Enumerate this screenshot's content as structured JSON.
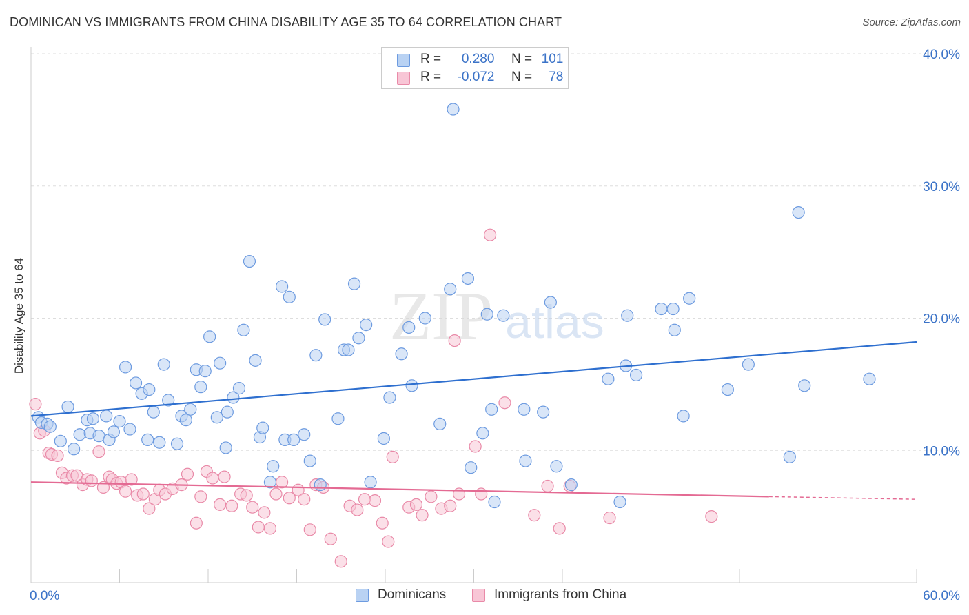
{
  "title": "DOMINICAN VS IMMIGRANTS FROM CHINA DISABILITY AGE 35 TO 64 CORRELATION CHART",
  "source": "Source: ZipAtlas.com",
  "watermark": {
    "zip": "ZIP",
    "atlas": "atlas"
  },
  "colors": {
    "blue": "#6d9be0",
    "blue_fill": "#b9d2f3",
    "blue_line": "#2e6fcf",
    "pink": "#e98aa8",
    "pink_fill": "#f8c6d6",
    "pink_line": "#e46a93",
    "tick_text": "#3b73c8"
  },
  "legend_top": {
    "rows": [
      {
        "r_label": "R =",
        "r_value": "0.280",
        "n_label": "N =",
        "n_value": "101"
      },
      {
        "r_label": "R =",
        "r_value": "-0.072",
        "n_label": "N =",
        "n_value": "78"
      }
    ]
  },
  "legend_bottom": {
    "dominicans": "Dominicans",
    "china": "Immigrants from China"
  },
  "chart_data": {
    "type": "scatter",
    "ylabel": "Disability Age 35 to 64",
    "xlim": [
      0,
      60
    ],
    "ylim": [
      0,
      40
    ],
    "x_tick_labels": [
      "0.0%",
      "60.0%"
    ],
    "y_ticks": [
      10,
      20,
      30,
      40
    ],
    "y_tick_labels": [
      "10.0%",
      "20.0%",
      "30.0%",
      "40.0%"
    ],
    "grid": true,
    "series": [
      {
        "name": "Dominicans",
        "trend": {
          "x": [
            0,
            60
          ],
          "y": [
            12.6,
            18.2
          ]
        },
        "points": [
          [
            0.5,
            12.5
          ],
          [
            0.7,
            12.1
          ],
          [
            1.1,
            12.0
          ],
          [
            1.3,
            11.8
          ],
          [
            2.0,
            10.7
          ],
          [
            2.5,
            13.3
          ],
          [
            2.9,
            10.1
          ],
          [
            3.3,
            11.2
          ],
          [
            3.8,
            12.3
          ],
          [
            4.0,
            11.3
          ],
          [
            4.6,
            11.1
          ],
          [
            5.1,
            12.6
          ],
          [
            5.3,
            10.8
          ],
          [
            5.6,
            11.4
          ],
          [
            6.0,
            12.2
          ],
          [
            6.4,
            16.3
          ],
          [
            6.7,
            11.6
          ],
          [
            7.1,
            15.1
          ],
          [
            7.5,
            14.3
          ],
          [
            7.9,
            10.8
          ],
          [
            8.0,
            14.6
          ],
          [
            8.3,
            12.9
          ],
          [
            8.7,
            10.6
          ],
          [
            9.0,
            16.5
          ],
          [
            9.3,
            13.8
          ],
          [
            9.9,
            10.5
          ],
          [
            10.2,
            12.6
          ],
          [
            10.5,
            12.3
          ],
          [
            10.8,
            13.1
          ],
          [
            11.2,
            16.1
          ],
          [
            11.5,
            14.8
          ],
          [
            11.8,
            16.0
          ],
          [
            12.1,
            18.6
          ],
          [
            12.6,
            12.5
          ],
          [
            12.8,
            16.6
          ],
          [
            13.2,
            10.2
          ],
          [
            13.7,
            14.0
          ],
          [
            14.1,
            14.7
          ],
          [
            14.4,
            19.1
          ],
          [
            14.8,
            24.3
          ],
          [
            15.2,
            16.8
          ],
          [
            15.5,
            11.0
          ],
          [
            15.7,
            11.7
          ],
          [
            16.2,
            7.6
          ],
          [
            16.4,
            8.8
          ],
          [
            17.0,
            22.4
          ],
          [
            17.2,
            10.8
          ],
          [
            17.5,
            21.6
          ],
          [
            17.8,
            10.8
          ],
          [
            18.5,
            11.2
          ],
          [
            18.9,
            9.2
          ],
          [
            19.3,
            17.2
          ],
          [
            19.6,
            7.4
          ],
          [
            19.9,
            19.9
          ],
          [
            20.8,
            12.4
          ],
          [
            21.2,
            17.6
          ],
          [
            21.5,
            17.6
          ],
          [
            21.9,
            22.6
          ],
          [
            22.2,
            18.5
          ],
          [
            22.7,
            19.5
          ],
          [
            23.0,
            7.6
          ],
          [
            23.9,
            10.9
          ],
          [
            24.3,
            14.0
          ],
          [
            25.1,
            17.3
          ],
          [
            25.8,
            14.9
          ],
          [
            26.7,
            20.0
          ],
          [
            27.7,
            12.0
          ],
          [
            28.4,
            22.2
          ],
          [
            28.6,
            35.8
          ],
          [
            29.6,
            23.0
          ],
          [
            29.8,
            8.7
          ],
          [
            30.6,
            11.3
          ],
          [
            30.9,
            20.3
          ],
          [
            31.2,
            13.1
          ],
          [
            31.4,
            6.1
          ],
          [
            32.0,
            20.2
          ],
          [
            33.5,
            9.2
          ],
          [
            33.4,
            13.1
          ],
          [
            34.7,
            12.9
          ],
          [
            35.2,
            21.2
          ],
          [
            35.6,
            8.8
          ],
          [
            36.6,
            7.4
          ],
          [
            39.1,
            15.4
          ],
          [
            39.9,
            6.1
          ],
          [
            40.3,
            16.4
          ],
          [
            40.4,
            20.2
          ],
          [
            41.0,
            15.7
          ],
          [
            42.7,
            20.7
          ],
          [
            43.5,
            20.7
          ],
          [
            43.6,
            19.1
          ],
          [
            44.2,
            12.6
          ],
          [
            44.6,
            21.5
          ],
          [
            47.2,
            14.6
          ],
          [
            48.6,
            16.5
          ],
          [
            51.4,
            9.5
          ],
          [
            52.0,
            28.0
          ],
          [
            52.4,
            14.9
          ],
          [
            56.8,
            15.4
          ],
          [
            4.2,
            12.4
          ],
          [
            13.3,
            12.9
          ],
          [
            25.6,
            19.3
          ]
        ]
      },
      {
        "name": "Immigrants from China",
        "trend": {
          "x": [
            0,
            50
          ],
          "y": [
            7.6,
            6.5
          ]
        },
        "trend_dashed": {
          "x": [
            50,
            60
          ],
          "y": [
            6.5,
            6.3
          ]
        },
        "points": [
          [
            0.3,
            13.5
          ],
          [
            0.6,
            11.3
          ],
          [
            0.9,
            11.5
          ],
          [
            1.2,
            9.8
          ],
          [
            1.4,
            9.7
          ],
          [
            1.8,
            9.6
          ],
          [
            2.1,
            8.3
          ],
          [
            2.4,
            7.9
          ],
          [
            2.8,
            8.1
          ],
          [
            3.1,
            8.1
          ],
          [
            3.5,
            7.4
          ],
          [
            3.8,
            7.8
          ],
          [
            4.1,
            7.7
          ],
          [
            4.6,
            9.9
          ],
          [
            4.9,
            7.2
          ],
          [
            5.3,
            8.0
          ],
          [
            5.5,
            7.8
          ],
          [
            5.8,
            7.5
          ],
          [
            6.1,
            7.6
          ],
          [
            6.4,
            6.9
          ],
          [
            6.8,
            7.8
          ],
          [
            7.2,
            6.6
          ],
          [
            7.6,
            6.7
          ],
          [
            8.0,
            5.6
          ],
          [
            8.4,
            6.3
          ],
          [
            8.7,
            7.0
          ],
          [
            9.1,
            6.7
          ],
          [
            9.6,
            7.1
          ],
          [
            10.2,
            7.4
          ],
          [
            10.6,
            8.2
          ],
          [
            11.2,
            4.5
          ],
          [
            11.5,
            6.5
          ],
          [
            11.9,
            8.4
          ],
          [
            12.3,
            7.9
          ],
          [
            12.8,
            5.9
          ],
          [
            13.1,
            8.0
          ],
          [
            13.6,
            5.8
          ],
          [
            14.2,
            6.7
          ],
          [
            14.6,
            6.6
          ],
          [
            15.0,
            5.7
          ],
          [
            15.4,
            4.2
          ],
          [
            15.8,
            5.3
          ],
          [
            16.2,
            4.1
          ],
          [
            16.6,
            6.7
          ],
          [
            17.0,
            7.6
          ],
          [
            17.5,
            6.4
          ],
          [
            18.1,
            7.0
          ],
          [
            18.5,
            6.3
          ],
          [
            18.9,
            4.0
          ],
          [
            19.3,
            7.4
          ],
          [
            19.8,
            7.2
          ],
          [
            20.3,
            3.3
          ],
          [
            21.0,
            1.6
          ],
          [
            21.6,
            5.8
          ],
          [
            22.1,
            5.5
          ],
          [
            22.6,
            6.3
          ],
          [
            23.3,
            6.2
          ],
          [
            23.8,
            4.5
          ],
          [
            24.2,
            3.1
          ],
          [
            24.5,
            9.5
          ],
          [
            25.6,
            5.7
          ],
          [
            26.1,
            5.9
          ],
          [
            26.5,
            5.1
          ],
          [
            27.1,
            6.5
          ],
          [
            27.8,
            5.6
          ],
          [
            28.4,
            5.8
          ],
          [
            28.7,
            18.3
          ],
          [
            29.0,
            6.7
          ],
          [
            30.1,
            10.3
          ],
          [
            30.5,
            6.7
          ],
          [
            31.1,
            26.3
          ],
          [
            32.1,
            13.6
          ],
          [
            34.1,
            5.1
          ],
          [
            35.0,
            7.3
          ],
          [
            35.8,
            4.1
          ],
          [
            36.5,
            7.3
          ],
          [
            39.2,
            4.9
          ],
          [
            46.1,
            5.0
          ]
        ]
      }
    ]
  }
}
